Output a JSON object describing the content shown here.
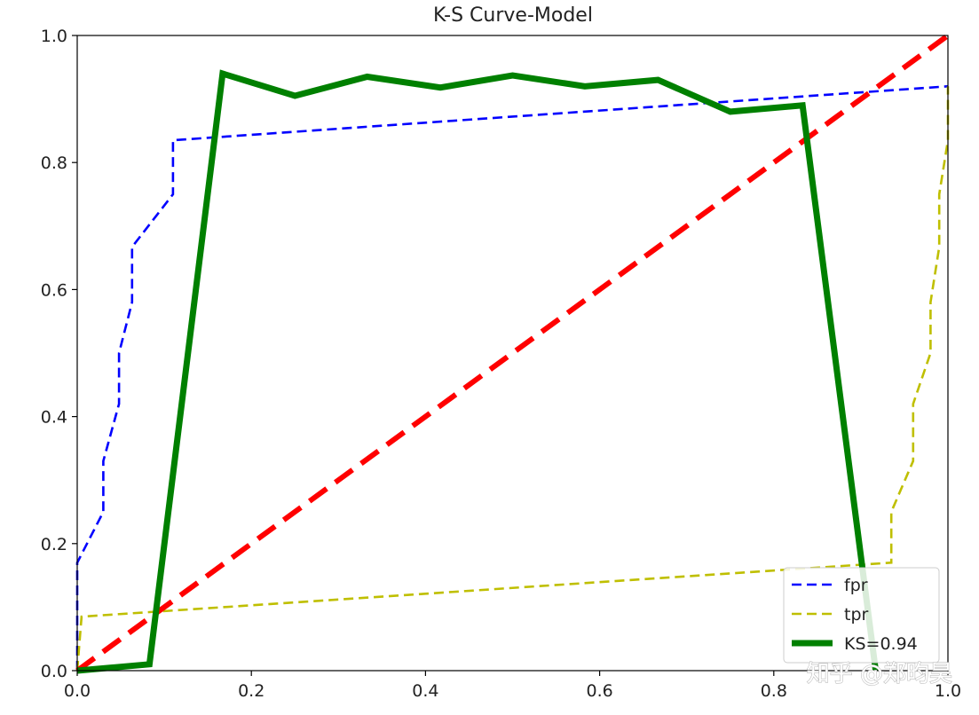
{
  "chart_data": {
    "type": "line",
    "title": "K-S Curve-Model",
    "xlim": [
      0,
      1
    ],
    "ylim": [
      0,
      1
    ],
    "xticks": [
      "0.0",
      "0.2",
      "0.4",
      "0.6",
      "0.8",
      "1.0"
    ],
    "yticks": [
      "0.0",
      "0.2",
      "0.4",
      "0.6",
      "0.8",
      "1.0"
    ],
    "grid": false,
    "legend_position": "lower-right",
    "series": [
      {
        "name": "fpr",
        "color": "#0000ff",
        "style": "dashed",
        "x": [
          0.0,
          0.0,
          0.0833,
          0.1111,
          0.1111,
          0.0833,
          0.0625,
          0.0625,
          0.0556,
          0.0476,
          0.0476,
          0.0313,
          0.0313,
          0.0179,
          0.0,
          1.0
        ],
        "x_note": "",
        "points": [
          [
            0.0,
            0.0
          ],
          [
            0.0,
            0.17
          ],
          [
            0.03,
            0.25
          ],
          [
            0.03,
            0.33
          ],
          [
            0.048,
            0.42
          ],
          [
            0.048,
            0.5
          ],
          [
            0.063,
            0.58
          ],
          [
            0.063,
            0.667
          ],
          [
            0.11,
            0.75
          ],
          [
            0.11,
            0.835
          ],
          [
            1.0,
            0.92
          ]
        ]
      },
      {
        "name": "tpr",
        "color": "#bfbf00",
        "style": "dashed",
        "points": [
          [
            0.0,
            0.0
          ],
          [
            0.005,
            0.085
          ],
          [
            0.935,
            0.17
          ],
          [
            0.935,
            0.25
          ],
          [
            0.96,
            0.33
          ],
          [
            0.96,
            0.42
          ],
          [
            0.98,
            0.5
          ],
          [
            0.98,
            0.58
          ],
          [
            0.99,
            0.667
          ],
          [
            0.99,
            0.75
          ],
          [
            1.0,
            0.835
          ],
          [
            1.0,
            0.92
          ]
        ]
      },
      {
        "name": "KS=0.94",
        "color": "#008000",
        "style": "solid",
        "points": [
          [
            0.0,
            0.0
          ],
          [
            0.083,
            0.01
          ],
          [
            0.167,
            0.94
          ],
          [
            0.25,
            0.905
          ],
          [
            0.333,
            0.935
          ],
          [
            0.417,
            0.918
          ],
          [
            0.5,
            0.937
          ],
          [
            0.583,
            0.92
          ],
          [
            0.667,
            0.93
          ],
          [
            0.75,
            0.88
          ],
          [
            0.833,
            0.89
          ],
          [
            0.917,
            0.0
          ]
        ]
      },
      {
        "name": "",
        "color": "#ff0000",
        "style": "dashed",
        "points": [
          [
            0.0,
            0.0
          ],
          [
            1.0,
            1.0
          ]
        ]
      }
    ]
  },
  "watermark": "知乎 @郑昀昊"
}
